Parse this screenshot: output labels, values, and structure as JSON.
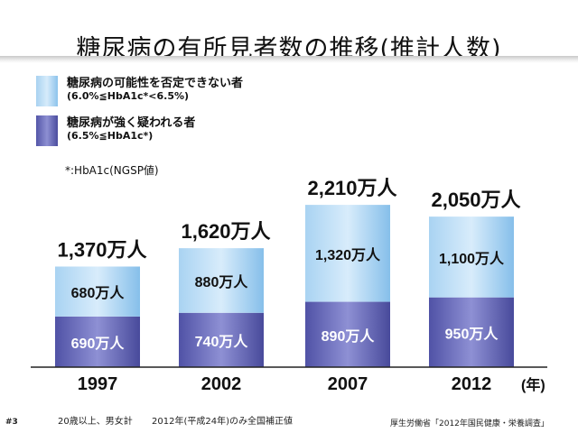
{
  "title": "糖尿病の有所見者数の推移(推計人数)",
  "legend": [
    {
      "label": "糖尿病の可能性を否定できない者",
      "note": "(6.0%≦HbA1c*<6.5%)",
      "color": "#a8d2f1"
    },
    {
      "label": "糖尿病が強く疑われる者",
      "note": "(6.5%≦HbA1c*)",
      "color": "#5d5fb3"
    }
  ],
  "footnote": "*:HbA1c(NGSP値)",
  "footer": {
    "slide_number": "#3",
    "basis": "20歳以上、男女計",
    "note": "2012年(平成24年)のみ全国補正値",
    "source": "厚生労働省「2012年国民健康・栄養調査」"
  },
  "chart_data": {
    "type": "bar",
    "stacked": true,
    "categories": [
      "1997",
      "2002",
      "2007",
      "2012"
    ],
    "x_unit": "(年)",
    "unit": "万人",
    "series": [
      {
        "name": "糖尿病が強く疑われる者",
        "values": [
          690,
          740,
          890,
          950
        ],
        "labels": [
          "690万人",
          "740万人",
          "890万人",
          "950万人"
        ]
      },
      {
        "name": "糖尿病の可能性を否定できない者",
        "values": [
          680,
          880,
          1320,
          1100
        ],
        "labels": [
          "680万人",
          "880万人",
          "1,320万人",
          "1,100万人"
        ]
      }
    ],
    "totals": [
      1370,
      1620,
      2210,
      2050
    ],
    "total_labels": [
      "1,370万人",
      "1,620万人",
      "2,210万人",
      "2,050万人"
    ],
    "ylim": [
      0,
      2400
    ]
  }
}
